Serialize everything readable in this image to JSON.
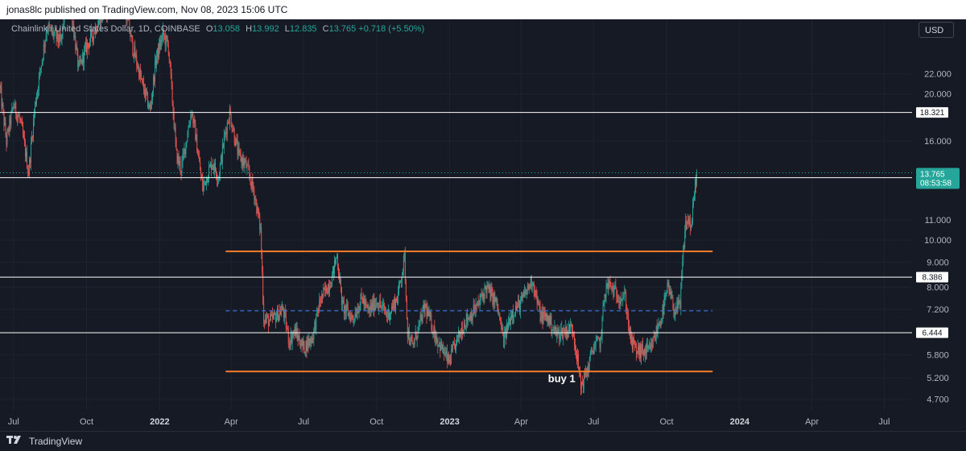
{
  "header": {
    "published_line": "jonas8lc published on TradingView.com, Nov 08, 2023 15:06 UTC"
  },
  "legend": {
    "symbol": "Chainlink / United States Dollar, 1D, COINBASE",
    "open_key": "O",
    "open": "13.058",
    "high_key": "H",
    "high": "13.992",
    "low_key": "L",
    "low": "12.835",
    "close_key": "C",
    "close": "13.765",
    "change": "+0.718 (+5.50%)"
  },
  "currency": "USD",
  "footer": {
    "brand": "TradingView"
  },
  "colors": {
    "background": "#161a25",
    "up": "#26a69a",
    "down": "#ef5350",
    "level_line": "#ffffff",
    "range_line": "#f57c2a",
    "mid_line": "#3f6ed8",
    "price_tag": "#26a69a"
  },
  "chart_data": {
    "type": "candlestick",
    "y_scale": "log",
    "ylim": [
      4.45,
      28.5
    ],
    "xlim": [
      "2021-06-14",
      "2024-08-05"
    ],
    "y_ticks": [
      "22.000",
      "20.000",
      "16.000",
      "11.000",
      "10.000",
      "9.000",
      "8.000",
      "7.200",
      "5.800",
      "5.200",
      "4.700"
    ],
    "x_ticks": [
      {
        "date": "2021-07-01",
        "label": "Jul",
        "bold": false
      },
      {
        "date": "2021-10-01",
        "label": "Oct",
        "bold": false
      },
      {
        "date": "2022-01-01",
        "label": "2022",
        "bold": true
      },
      {
        "date": "2022-04-01",
        "label": "Apr",
        "bold": false
      },
      {
        "date": "2022-07-01",
        "label": "Jul",
        "bold": false
      },
      {
        "date": "2022-10-01",
        "label": "Oct",
        "bold": false
      },
      {
        "date": "2023-01-01",
        "label": "2023",
        "bold": true
      },
      {
        "date": "2023-04-01",
        "label": "Apr",
        "bold": false
      },
      {
        "date": "2023-07-01",
        "label": "Jul",
        "bold": false
      },
      {
        "date": "2023-10-01",
        "label": "Oct",
        "bold": false
      },
      {
        "date": "2024-01-01",
        "label": "2024",
        "bold": true
      },
      {
        "date": "2024-04-01",
        "label": "Apr",
        "bold": false
      },
      {
        "date": "2024-07-01",
        "label": "Jul",
        "bold": false
      }
    ],
    "horizontal_levels": [
      {
        "value": 18.321,
        "label": "18.321"
      },
      {
        "value": 13.445,
        "label": "13.445"
      },
      {
        "value": 8.386,
        "label": "8.386"
      },
      {
        "value": 6.444,
        "label": "6.444"
      }
    ],
    "range_lines": [
      {
        "value": 9.48,
        "from": "2022-03-25",
        "to": "2023-11-28"
      },
      {
        "value": 5.36,
        "from": "2022-03-25",
        "to": "2023-11-28"
      }
    ],
    "mid_line": {
      "value": 7.15,
      "from": "2022-03-25",
      "to": "2023-11-28"
    },
    "last_price": {
      "value": 13.765,
      "label": "13.765",
      "countdown": "08:53:58"
    },
    "annotations": [
      {
        "text": "buy 1",
        "date": "2023-05-22",
        "value": 5.1
      }
    ],
    "price_path": [
      [
        "2021-06-14",
        20.5
      ],
      [
        "2021-06-22",
        16.0
      ],
      [
        "2021-07-01",
        19.0
      ],
      [
        "2021-07-10",
        17.5
      ],
      [
        "2021-07-20",
        13.8
      ],
      [
        "2021-07-28",
        19.0
      ],
      [
        "2021-08-12",
        27.5
      ],
      [
        "2021-08-30",
        25.5
      ],
      [
        "2021-09-07",
        34.0
      ],
      [
        "2021-09-21",
        22.5
      ],
      [
        "2021-10-01",
        25.0
      ],
      [
        "2021-10-15",
        28.0
      ],
      [
        "2021-11-01",
        31.0
      ],
      [
        "2021-11-10",
        35.0
      ],
      [
        "2021-11-28",
        25.0
      ],
      [
        "2021-12-10",
        21.0
      ],
      [
        "2021-12-20",
        18.5
      ],
      [
        "2021-12-27",
        23.5
      ],
      [
        "2022-01-05",
        26.5
      ],
      [
        "2022-01-12",
        25.0
      ],
      [
        "2022-01-22",
        15.0
      ],
      [
        "2022-01-28",
        14.0
      ],
      [
        "2022-02-10",
        18.5
      ],
      [
        "2022-02-15",
        16.5
      ],
      [
        "2022-02-24",
        12.8
      ],
      [
        "2022-03-08",
        14.5
      ],
      [
        "2022-03-16",
        13.5
      ],
      [
        "2022-03-24",
        16.5
      ],
      [
        "2022-03-30",
        18.3
      ],
      [
        "2022-04-10",
        15.0
      ],
      [
        "2022-04-20",
        14.2
      ],
      [
        "2022-04-30",
        12.5
      ],
      [
        "2022-05-08",
        10.5
      ],
      [
        "2022-05-12",
        6.9
      ],
      [
        "2022-05-20",
        6.8
      ],
      [
        "2022-06-05",
        7.2
      ],
      [
        "2022-06-13",
        6.2
      ],
      [
        "2022-06-20",
        6.5
      ],
      [
        "2022-07-01",
        6.0
      ],
      [
        "2022-07-12",
        6.3
      ],
      [
        "2022-07-22",
        7.5
      ],
      [
        "2022-08-05",
        8.3
      ],
      [
        "2022-08-12",
        9.3
      ],
      [
        "2022-08-19",
        7.3
      ],
      [
        "2022-09-01",
        6.9
      ],
      [
        "2022-09-13",
        7.6
      ],
      [
        "2022-09-20",
        7.1
      ],
      [
        "2022-10-01",
        7.5
      ],
      [
        "2022-10-15",
        7.0
      ],
      [
        "2022-10-27",
        7.6
      ],
      [
        "2022-11-05",
        9.2
      ],
      [
        "2022-11-09",
        6.5
      ],
      [
        "2022-11-15",
        6.0
      ],
      [
        "2022-12-01",
        7.3
      ],
      [
        "2022-12-15",
        6.3
      ],
      [
        "2022-12-31",
        5.6
      ],
      [
        "2023-01-10",
        6.2
      ],
      [
        "2023-01-20",
        6.8
      ],
      [
        "2023-02-05",
        7.3
      ],
      [
        "2023-02-16",
        8.0
      ],
      [
        "2023-03-01",
        7.4
      ],
      [
        "2023-03-10",
        6.2
      ],
      [
        "2023-03-20",
        7.1
      ],
      [
        "2023-03-31",
        7.4
      ],
      [
        "2023-04-15",
        8.3
      ],
      [
        "2023-04-25",
        7.0
      ],
      [
        "2023-05-05",
        6.9
      ],
      [
        "2023-05-15",
        6.4
      ],
      [
        "2023-05-25",
        6.5
      ],
      [
        "2023-06-05",
        6.6
      ],
      [
        "2023-06-10",
        5.8
      ],
      [
        "2023-06-15",
        5.0
      ],
      [
        "2023-06-25",
        5.5
      ],
      [
        "2023-06-30",
        6.0
      ],
      [
        "2023-07-10",
        6.2
      ],
      [
        "2023-07-15",
        7.8
      ],
      [
        "2023-07-20",
        8.1
      ],
      [
        "2023-07-31",
        7.7
      ],
      [
        "2023-08-10",
        7.6
      ],
      [
        "2023-08-17",
        6.2
      ],
      [
        "2023-08-25",
        5.9
      ],
      [
        "2023-09-10",
        5.9
      ],
      [
        "2023-09-25",
        7.0
      ],
      [
        "2023-10-03",
        8.0
      ],
      [
        "2023-10-10",
        7.2
      ],
      [
        "2023-10-18",
        7.3
      ],
      [
        "2023-10-22",
        9.5
      ],
      [
        "2023-10-25",
        10.8
      ],
      [
        "2023-10-30",
        11.0
      ],
      [
        "2023-11-01",
        10.5
      ],
      [
        "2023-11-04",
        12.0
      ],
      [
        "2023-11-06",
        13.0
      ],
      [
        "2023-11-08",
        13.765
      ]
    ]
  }
}
